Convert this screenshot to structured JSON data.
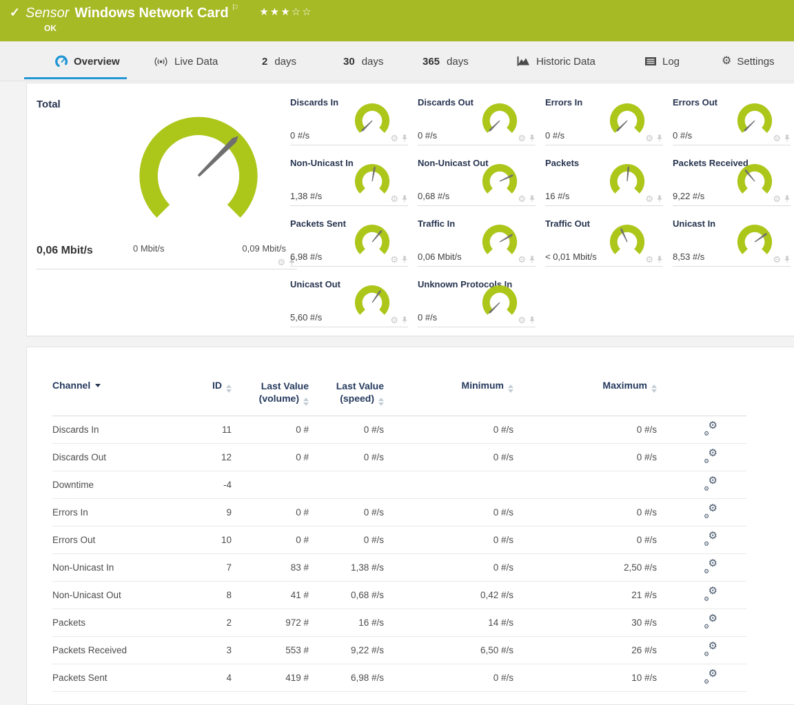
{
  "banner": {
    "check": "✓",
    "kind": "Sensor",
    "title": "Windows Network Card",
    "flag": "⚐",
    "stars_filled": "★★★",
    "stars_empty": "☆☆",
    "status": "OK",
    "color": "#a6ba25"
  },
  "tabs": {
    "overview": "Overview",
    "live_data": "Live Data",
    "d2_num": "2",
    "d2_label": "days",
    "d30_num": "30",
    "d30_label": "days",
    "d365_num": "365",
    "d365_label": "days",
    "historic": "Historic Data",
    "log": "Log",
    "settings": "Settings",
    "active_color": "#2397d6"
  },
  "total_gauge": {
    "title": "Total",
    "value": "0,06 Mbit/s",
    "scale_min": "0 Mbit/s",
    "scale_max": "0,09 Mbit/s",
    "needle_deg": 45,
    "arc_color": "#adc61a"
  },
  "small_gauges": [
    {
      "title": "Discards In",
      "value": "0 #/s",
      "needle_deg": 225
    },
    {
      "title": "Discards Out",
      "value": "0 #/s",
      "needle_deg": 225
    },
    {
      "title": "Errors In",
      "value": "0 #/s",
      "needle_deg": 225
    },
    {
      "title": "Errors Out",
      "value": "0 #/s",
      "needle_deg": 225
    },
    {
      "title": "Non-Unicast In",
      "value": "1,38 #/s",
      "needle_deg": 80
    },
    {
      "title": "Non-Unicast Out",
      "value": "0,68 #/s",
      "needle_deg": 25
    },
    {
      "title": "Packets",
      "value": "16 #/s",
      "needle_deg": 85
    },
    {
      "title": "Packets Received",
      "value": "9,22 #/s",
      "needle_deg": 130
    },
    {
      "title": "Packets Sent",
      "value": "6,98 #/s",
      "needle_deg": 50
    },
    {
      "title": "Traffic In",
      "value": "0,06 Mbit/s",
      "needle_deg": 30
    },
    {
      "title": "Traffic Out",
      "value": "< 0,01 Mbit/s",
      "needle_deg": 115
    },
    {
      "title": "Unicast In",
      "value": "8,53 #/s",
      "needle_deg": 35
    },
    {
      "title": "Unicast Out",
      "value": "5,60 #/s",
      "needle_deg": 55
    },
    {
      "title": "Unknown Protocols In",
      "value": "0 #/s",
      "needle_deg": 225
    }
  ],
  "channel_table": {
    "columns": [
      {
        "label": "Channel"
      },
      {
        "label": "ID"
      },
      {
        "label": "Last Value",
        "label2": "(volume)"
      },
      {
        "label": "Last Value",
        "label2": "(speed)"
      },
      {
        "label": "Minimum"
      },
      {
        "label": "Maximum"
      }
    ],
    "rows": [
      {
        "channel": "Discards In",
        "id": "11",
        "volume": "0 #",
        "speed": "0 #/s",
        "min": "0 #/s",
        "max": "0 #/s"
      },
      {
        "channel": "Discards Out",
        "id": "12",
        "volume": "0 #",
        "speed": "0 #/s",
        "min": "0 #/s",
        "max": "0 #/s"
      },
      {
        "channel": "Downtime",
        "id": "-4",
        "volume": "",
        "speed": "",
        "min": "",
        "max": ""
      },
      {
        "channel": "Errors In",
        "id": "9",
        "volume": "0 #",
        "speed": "0 #/s",
        "min": "0 #/s",
        "max": "0 #/s"
      },
      {
        "channel": "Errors Out",
        "id": "10",
        "volume": "0 #",
        "speed": "0 #/s",
        "min": "0 #/s",
        "max": "0 #/s"
      },
      {
        "channel": "Non-Unicast In",
        "id": "7",
        "volume": "83 #",
        "speed": "1,38 #/s",
        "min": "0 #/s",
        "max": "2,50 #/s"
      },
      {
        "channel": "Non-Unicast Out",
        "id": "8",
        "volume": "41 #",
        "speed": "0,68 #/s",
        "min": "0,42 #/s",
        "max": "21 #/s"
      },
      {
        "channel": "Packets",
        "id": "2",
        "volume": "972 #",
        "speed": "16 #/s",
        "min": "14 #/s",
        "max": "30 #/s"
      },
      {
        "channel": "Packets Received",
        "id": "3",
        "volume": "553 #",
        "speed": "9,22 #/s",
        "min": "6,50 #/s",
        "max": "26 #/s"
      },
      {
        "channel": "Packets Sent",
        "id": "4",
        "volume": "419 #",
        "speed": "6,98 #/s",
        "min": "0 #/s",
        "max": "10 #/s"
      }
    ]
  }
}
